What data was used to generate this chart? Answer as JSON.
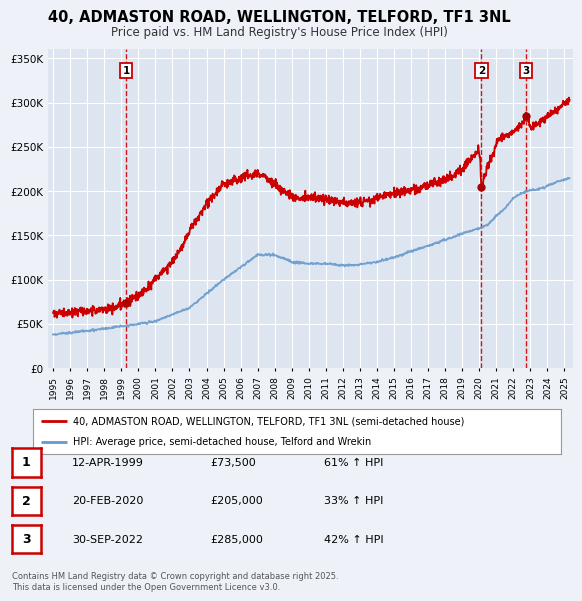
{
  "title": "40, ADMASTON ROAD, WELLINGTON, TELFORD, TF1 3NL",
  "subtitle": "Price paid vs. HM Land Registry's House Price Index (HPI)",
  "background_color": "#eef2f8",
  "plot_bg_color": "#dde6f0",
  "grid_color": "#ffffff",
  "red_line_color": "#cc0000",
  "blue_line_color": "#6699cc",
  "sale_marker_color": "#aa0000",
  "vline_color": "#cc0000",
  "table_border_color": "#cc0000",
  "ylim": [
    0,
    360000
  ],
  "yticks": [
    0,
    50000,
    100000,
    150000,
    200000,
    250000,
    300000,
    350000
  ],
  "ytick_labels": [
    "£0",
    "£50K",
    "£100K",
    "£150K",
    "£200K",
    "£250K",
    "£300K",
    "£350K"
  ],
  "xlim_start": 1994.7,
  "xlim_end": 2025.5,
  "xticks": [
    1995,
    1996,
    1997,
    1998,
    1999,
    2000,
    2001,
    2002,
    2003,
    2004,
    2005,
    2006,
    2007,
    2008,
    2009,
    2010,
    2011,
    2012,
    2013,
    2014,
    2015,
    2016,
    2017,
    2018,
    2019,
    2020,
    2021,
    2022,
    2023,
    2024,
    2025
  ],
  "sale_dates": [
    1999.28,
    2020.13,
    2022.75
  ],
  "sale_prices": [
    73500,
    205000,
    285000
  ],
  "sale_labels": [
    "1",
    "2",
    "3"
  ],
  "legend_line1": "40, ADMASTON ROAD, WELLINGTON, TELFORD, TF1 3NL (semi-detached house)",
  "legend_line2": "HPI: Average price, semi-detached house, Telford and Wrekin",
  "table_rows": [
    {
      "num": "1",
      "date": "12-APR-1999",
      "price": "£73,500",
      "hpi": "61% ↑ HPI"
    },
    {
      "num": "2",
      "date": "20-FEB-2020",
      "price": "£205,000",
      "hpi": "33% ↑ HPI"
    },
    {
      "num": "3",
      "date": "30-SEP-2022",
      "price": "£285,000",
      "hpi": "42% ↑ HPI"
    }
  ],
  "footer": "Contains HM Land Registry data © Crown copyright and database right 2025.\nThis data is licensed under the Open Government Licence v3.0."
}
